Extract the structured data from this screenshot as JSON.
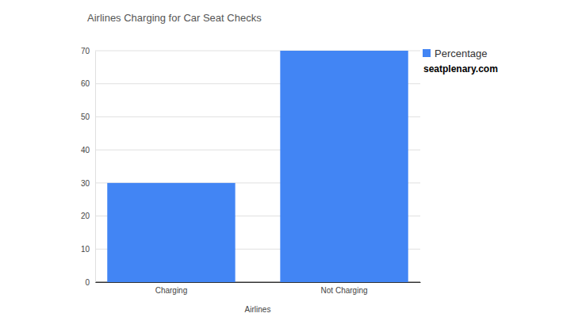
{
  "chart_data": {
    "type": "bar",
    "title": "Airlines Charging for Car Seat Checks",
    "x_label": "Airlines",
    "categories": [
      "Charging",
      "Not Charging"
    ],
    "series": [
      {
        "name": "Percentage",
        "color": "#4285f4",
        "values": [
          30,
          70
        ]
      }
    ],
    "ylim": [
      0,
      70
    ],
    "yticks": [
      0,
      10,
      20,
      30,
      40,
      50,
      60,
      70
    ],
    "grid": true,
    "legend": "right",
    "annotations": [
      "seatplenary.com"
    ]
  }
}
